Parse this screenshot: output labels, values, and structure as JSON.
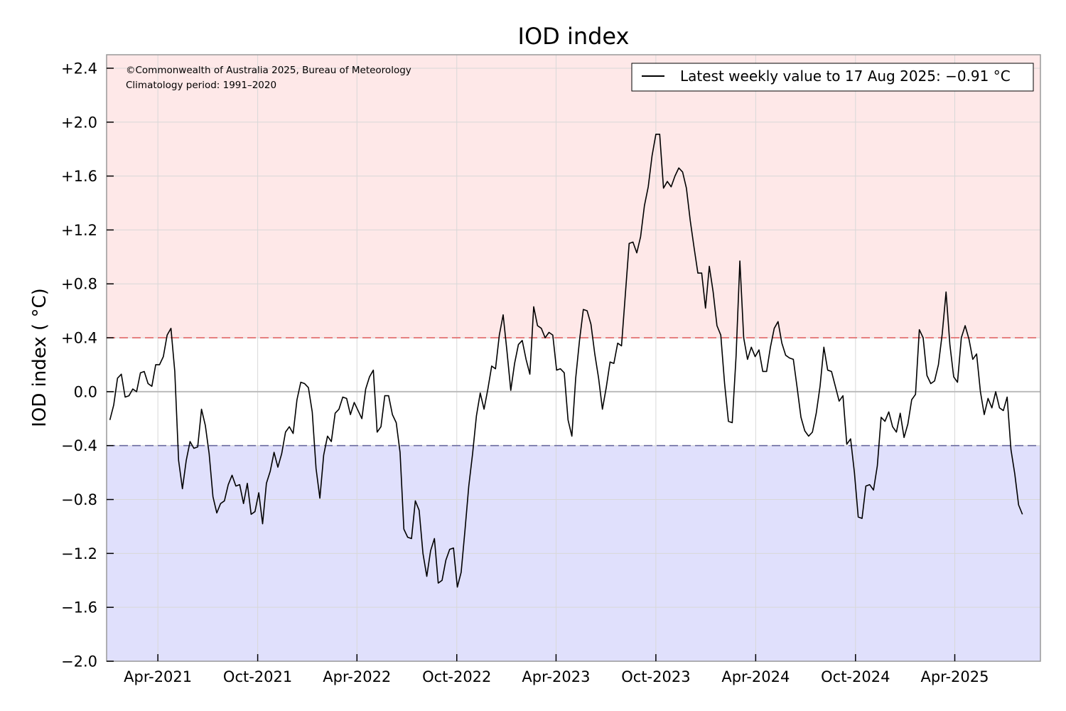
{
  "chart_data": {
    "type": "line",
    "title": "IOD index",
    "ylabel": "IOD index ( °C)",
    "xlabel": "",
    "ylim": [
      -2.0,
      2.5
    ],
    "xlim": [
      "2020-12-28",
      "2025-09-05"
    ],
    "y_ticks": [
      2.4,
      2.0,
      1.6,
      1.2,
      0.8,
      0.4,
      0.0,
      -0.4,
      -0.8,
      -1.2,
      -1.6,
      -2.0
    ],
    "y_tick_labels": [
      "+2.4",
      "+2.0",
      "+1.6",
      "+1.2",
      "+0.8",
      "+0.4",
      "0.0",
      "−0.4",
      "−0.8",
      "−1.2",
      "−1.6",
      "−2.0"
    ],
    "x_ticks": [
      "2021-04-01",
      "2021-10-01",
      "2022-04-01",
      "2022-10-01",
      "2023-04-01",
      "2023-10-01",
      "2024-04-01",
      "2024-10-01",
      "2025-04-01"
    ],
    "x_tick_labels": [
      "Apr-2021",
      "Oct-2021",
      "Apr-2022",
      "Oct-2022",
      "Apr-2023",
      "Oct-2023",
      "Apr-2024",
      "Oct-2024",
      "Apr-2025"
    ],
    "grid": true,
    "thresholds": [
      {
        "value": 0.4,
        "color": "#e06666",
        "style": "dashed"
      },
      {
        "value": -0.4,
        "color": "#6b6b9e",
        "style": "dashed"
      }
    ],
    "zero_line": 0.0,
    "bands": [
      {
        "from": 0.4,
        "to": 2.5,
        "color": "#fee8e8"
      },
      {
        "from": -2.0,
        "to": -0.4,
        "color": "#e0e0fc"
      }
    ],
    "annotations": [
      "©Commonwealth of Australia 2025, Bureau of Meteorology",
      "Climatology period: 1991–2020"
    ],
    "legend": {
      "placement": "top-right",
      "entries": [
        "Latest weekly value to 17 Aug 2025: −0.91 °C"
      ]
    },
    "series": [
      {
        "name": "Latest weekly value to 17 Aug 2025: −0.91 °C",
        "color": "#000000",
        "x_start": "2021-01-03",
        "x_step_days": 7,
        "values": [
          -0.21,
          -0.1,
          0.1,
          0.13,
          -0.04,
          -0.03,
          0.02,
          0.0,
          0.14,
          0.15,
          0.06,
          0.04,
          0.2,
          0.2,
          0.26,
          0.42,
          0.47,
          0.15,
          -0.51,
          -0.72,
          -0.51,
          -0.37,
          -0.42,
          -0.41,
          -0.13,
          -0.25,
          -0.46,
          -0.78,
          -0.9,
          -0.83,
          -0.81,
          -0.69,
          -0.62,
          -0.7,
          -0.69,
          -0.83,
          -0.68,
          -0.91,
          -0.89,
          -0.75,
          -0.98,
          -0.68,
          -0.59,
          -0.45,
          -0.56,
          -0.46,
          -0.3,
          -0.26,
          -0.31,
          -0.06,
          0.07,
          0.06,
          0.03,
          -0.15,
          -0.57,
          -0.79,
          -0.47,
          -0.33,
          -0.37,
          -0.16,
          -0.13,
          -0.04,
          -0.05,
          -0.17,
          -0.08,
          -0.14,
          -0.2,
          0.02,
          0.11,
          0.16,
          -0.3,
          -0.26,
          -0.03,
          -0.03,
          -0.17,
          -0.23,
          -0.45,
          -1.02,
          -1.08,
          -1.09,
          -0.81,
          -0.88,
          -1.2,
          -1.37,
          -1.18,
          -1.09,
          -1.42,
          -1.4,
          -1.25,
          -1.17,
          -1.16,
          -1.45,
          -1.34,
          -1.03,
          -0.7,
          -0.46,
          -0.18,
          -0.01,
          -0.13,
          0.02,
          0.19,
          0.17,
          0.42,
          0.57,
          0.3,
          0.01,
          0.21,
          0.35,
          0.38,
          0.24,
          0.13,
          0.63,
          0.49,
          0.47,
          0.4,
          0.44,
          0.42,
          0.16,
          0.17,
          0.14,
          -0.21,
          -0.33,
          0.1,
          0.38,
          0.61,
          0.6,
          0.5,
          0.28,
          0.1,
          -0.13,
          0.03,
          0.22,
          0.21,
          0.36,
          0.34,
          0.72,
          1.1,
          1.11,
          1.03,
          1.15,
          1.38,
          1.52,
          1.75,
          1.91,
          1.91,
          1.51,
          1.56,
          1.52,
          1.6,
          1.66,
          1.63,
          1.51,
          1.27,
          1.07,
          0.88,
          0.88,
          0.62,
          0.93,
          0.74,
          0.49,
          0.42,
          0.06,
          -0.22,
          -0.23,
          0.26,
          0.97,
          0.4,
          0.24,
          0.33,
          0.26,
          0.31,
          0.15,
          0.15,
          0.33,
          0.47,
          0.52,
          0.36,
          0.27,
          0.25,
          0.24,
          0.03,
          -0.19,
          -0.29,
          -0.33,
          -0.3,
          -0.16,
          0.04,
          0.33,
          0.16,
          0.15,
          0.04,
          -0.07,
          -0.03,
          -0.39,
          -0.35,
          -0.6,
          -0.93,
          -0.94,
          -0.7,
          -0.69,
          -0.73,
          -0.55,
          -0.19,
          -0.22,
          -0.15,
          -0.26,
          -0.3,
          -0.16,
          -0.34,
          -0.24,
          -0.06,
          -0.02,
          0.46,
          0.4,
          0.12,
          0.06,
          0.08,
          0.2,
          0.43,
          0.74,
          0.35,
          0.11,
          0.07,
          0.4,
          0.49,
          0.39,
          0.24,
          0.28,
          0.0,
          -0.17,
          -0.05,
          -0.12,
          -0.0,
          -0.12,
          -0.14,
          -0.04,
          -0.43,
          -0.61,
          -0.84,
          -0.91
        ]
      }
    ]
  }
}
